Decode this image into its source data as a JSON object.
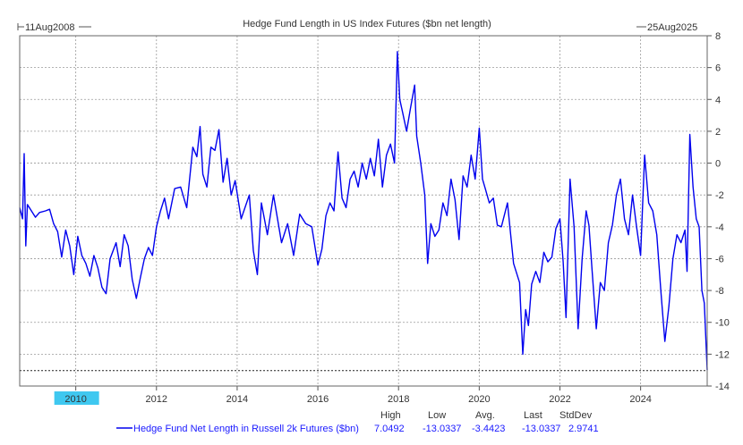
{
  "chart_data": {
    "type": "line",
    "title": "Hedge Fund Length in US Index Futures ($bn net length)",
    "start_label": "11Aug2008",
    "end_label": "25Aug2025",
    "x_range": [
      2008.61,
      2025.65
    ],
    "ylim": [
      -14,
      8
    ],
    "y_ticks": [
      8,
      6,
      4,
      2,
      0,
      -2,
      -4,
      -6,
      -8,
      -10,
      -12,
      -14
    ],
    "x_ticks": [
      2010,
      2012,
      2014,
      2016,
      2018,
      2020,
      2022,
      2024
    ],
    "highlighted_tick": "2010",
    "grid": true,
    "reference_line": -13.0337,
    "colors": {
      "series": "#0000ee",
      "grid": "#9a9a9a",
      "highlight": "#3fc8f0",
      "axis": "#555555"
    },
    "series": [
      {
        "name": "Hedge Fund Net Length in Russell 2k Futures ($bn)",
        "x": [
          2008.61,
          2008.68,
          2008.72,
          2008.76,
          2008.8,
          2008.9,
          2009.0,
          2009.1,
          2009.25,
          2009.35,
          2009.45,
          2009.55,
          2009.65,
          2009.75,
          2009.85,
          2009.95,
          2010.05,
          2010.15,
          2010.25,
          2010.35,
          2010.45,
          2010.55,
          2010.65,
          2010.75,
          2010.85,
          2011.0,
          2011.1,
          2011.2,
          2011.3,
          2011.4,
          2011.5,
          2011.6,
          2011.7,
          2011.8,
          2011.9,
          2012.0,
          2012.1,
          2012.2,
          2012.3,
          2012.45,
          2012.6,
          2012.75,
          2012.9,
          2013.0,
          2013.08,
          2013.15,
          2013.25,
          2013.35,
          2013.45,
          2013.55,
          2013.65,
          2013.75,
          2013.85,
          2013.95,
          2014.1,
          2014.3,
          2014.4,
          2014.5,
          2014.6,
          2014.75,
          2014.9,
          2015.0,
          2015.1,
          2015.25,
          2015.4,
          2015.55,
          2015.7,
          2015.85,
          2016.0,
          2016.1,
          2016.2,
          2016.3,
          2016.4,
          2016.5,
          2016.6,
          2016.7,
          2016.8,
          2016.9,
          2017.0,
          2017.1,
          2017.2,
          2017.3,
          2017.4,
          2017.5,
          2017.6,
          2017.7,
          2017.8,
          2017.9,
          2017.97,
          2018.03,
          2018.1,
          2018.2,
          2018.3,
          2018.4,
          2018.45,
          2018.55,
          2018.65,
          2018.72,
          2018.8,
          2018.9,
          2019.0,
          2019.1,
          2019.2,
          2019.3,
          2019.4,
          2019.5,
          2019.6,
          2019.7,
          2019.8,
          2019.9,
          2020.0,
          2020.08,
          2020.15,
          2020.25,
          2020.35,
          2020.45,
          2020.55,
          2020.7,
          2020.85,
          2021.0,
          2021.08,
          2021.15,
          2021.22,
          2021.3,
          2021.4,
          2021.5,
          2021.6,
          2021.7,
          2021.8,
          2021.9,
          2022.0,
          2022.08,
          2022.15,
          2022.25,
          2022.35,
          2022.45,
          2022.55,
          2022.65,
          2022.72,
          2022.8,
          2022.9,
          2023.0,
          2023.1,
          2023.2,
          2023.3,
          2023.4,
          2023.5,
          2023.6,
          2023.7,
          2023.8,
          2023.9,
          2024.0,
          2024.1,
          2024.2,
          2024.3,
          2024.4,
          2024.5,
          2024.6,
          2024.7,
          2024.8,
          2024.9,
          2025.0,
          2025.1,
          2025.15,
          2025.22,
          2025.3,
          2025.38,
          2025.45,
          2025.52,
          2025.58,
          2025.65
        ],
        "values": [
          -2.8,
          -3.5,
          0.6,
          -5.2,
          -2.6,
          -3.0,
          -3.4,
          -3.1,
          -3.0,
          -2.9,
          -3.8,
          -4.3,
          -5.9,
          -4.2,
          -5.2,
          -7.0,
          -4.6,
          -5.8,
          -6.3,
          -7.1,
          -5.8,
          -6.6,
          -7.8,
          -8.2,
          -6.0,
          -5.0,
          -6.5,
          -4.5,
          -5.2,
          -7.3,
          -8.5,
          -7.2,
          -6.0,
          -5.3,
          -5.8,
          -4.0,
          -3.0,
          -2.2,
          -3.5,
          -1.6,
          -1.5,
          -2.8,
          1.0,
          0.4,
          2.3,
          -0.7,
          -1.5,
          1.0,
          0.8,
          2.1,
          -1.2,
          0.3,
          -2.0,
          -1.1,
          -3.5,
          -2.0,
          -5.5,
          -7.0,
          -2.5,
          -4.5,
          -2.0,
          -3.5,
          -5.0,
          -3.8,
          -5.8,
          -3.2,
          -3.8,
          -4.0,
          -6.4,
          -5.4,
          -3.3,
          -2.5,
          -3.0,
          0.7,
          -2.2,
          -2.8,
          -1.0,
          -0.5,
          -1.5,
          0.0,
          -1.0,
          0.3,
          -0.8,
          1.5,
          -1.5,
          0.5,
          1.2,
          0.0,
          7.0,
          4.0,
          3.2,
          2.0,
          3.5,
          4.9,
          1.7,
          0.0,
          -2.0,
          -6.3,
          -3.8,
          -4.6,
          -4.2,
          -2.5,
          -3.3,
          -1.0,
          -2.3,
          -4.8,
          -0.8,
          -1.5,
          0.5,
          -1.0,
          2.2,
          -1.0,
          -1.6,
          -2.5,
          -2.2,
          -3.9,
          -4.0,
          -2.5,
          -6.3,
          -7.5,
          -12.0,
          -9.2,
          -10.2,
          -7.6,
          -6.8,
          -7.5,
          -5.6,
          -6.2,
          -5.9,
          -4.1,
          -3.5,
          -6.2,
          -9.7,
          -1.0,
          -4.0,
          -10.4,
          -6.0,
          -3.0,
          -3.9,
          -6.8,
          -10.4,
          -7.5,
          -8.0,
          -5.0,
          -3.9,
          -2.0,
          -1.0,
          -3.5,
          -4.5,
          -2.0,
          -4.0,
          -5.8,
          0.5,
          -2.5,
          -3.0,
          -4.5,
          -8.0,
          -11.2,
          -9.0,
          -6.0,
          -4.5,
          -5.0,
          -4.2,
          -6.8,
          1.8,
          -1.5,
          -3.5,
          -4.0,
          -8.0,
          -8.8,
          -13.0
        ]
      }
    ],
    "legend": {
      "label": "Hedge Fund Net Length in Russell 2k Futures ($bn)",
      "headers": [
        "High",
        "Low",
        "Avg.",
        "Last",
        "StdDev"
      ],
      "values": [
        "7.0492",
        "-13.0337",
        "-3.4423",
        "-13.0337",
        "2.9741"
      ]
    }
  }
}
